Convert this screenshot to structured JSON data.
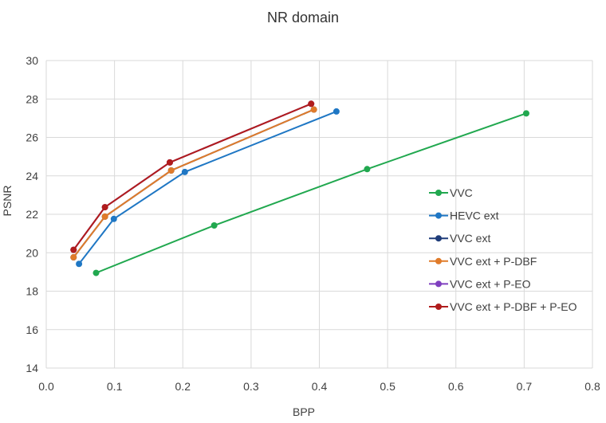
{
  "chart_data": {
    "type": "line",
    "title": "NR domain",
    "xlabel": "BPP",
    "ylabel": "PSNR",
    "xlim": [
      0.0,
      0.8
    ],
    "ylim": [
      14,
      30
    ],
    "xticks": [
      "0.0",
      "0.1",
      "0.2",
      "0.3",
      "0.4",
      "0.5",
      "0.6",
      "0.7",
      "0.8"
    ],
    "yticks": [
      "14",
      "16",
      "18",
      "20",
      "22",
      "24",
      "26",
      "28",
      "30"
    ],
    "grid": true,
    "legend_position": "right",
    "series": [
      {
        "name": "VVC",
        "color": "#21a84f",
        "points": [
          [
            0.073,
            18.95
          ],
          [
            0.246,
            21.42
          ],
          [
            0.47,
            24.35
          ],
          [
            0.703,
            27.25
          ]
        ]
      },
      {
        "name": "HEVC ext",
        "color": "#1f77c4",
        "points": [
          [
            0.048,
            19.42
          ],
          [
            0.099,
            21.76
          ],
          [
            0.203,
            24.2
          ],
          [
            0.425,
            27.35
          ]
        ]
      },
      {
        "name": "VVC ext",
        "color": "#1f3d7a",
        "points": [
          [
            0.04,
            19.76
          ],
          [
            0.086,
            21.88
          ],
          [
            0.183,
            24.28
          ],
          [
            0.392,
            27.45
          ]
        ]
      },
      {
        "name": "VVC ext + P-DBF",
        "color": "#e07b2a",
        "points": [
          [
            0.04,
            19.76
          ],
          [
            0.086,
            21.88
          ],
          [
            0.183,
            24.28
          ],
          [
            0.392,
            27.45
          ]
        ]
      },
      {
        "name": "VVC ext + P-EO",
        "color": "#7f3fbf",
        "points": [
          [
            0.04,
            20.15
          ],
          [
            0.086,
            22.37
          ],
          [
            0.181,
            24.7
          ],
          [
            0.388,
            27.75
          ]
        ]
      },
      {
        "name": "VVC ext + P-DBF + P-EO",
        "color": "#b01c1c",
        "points": [
          [
            0.04,
            20.15
          ],
          [
            0.086,
            22.37
          ],
          [
            0.181,
            24.7
          ],
          [
            0.388,
            27.75
          ]
        ]
      }
    ]
  }
}
